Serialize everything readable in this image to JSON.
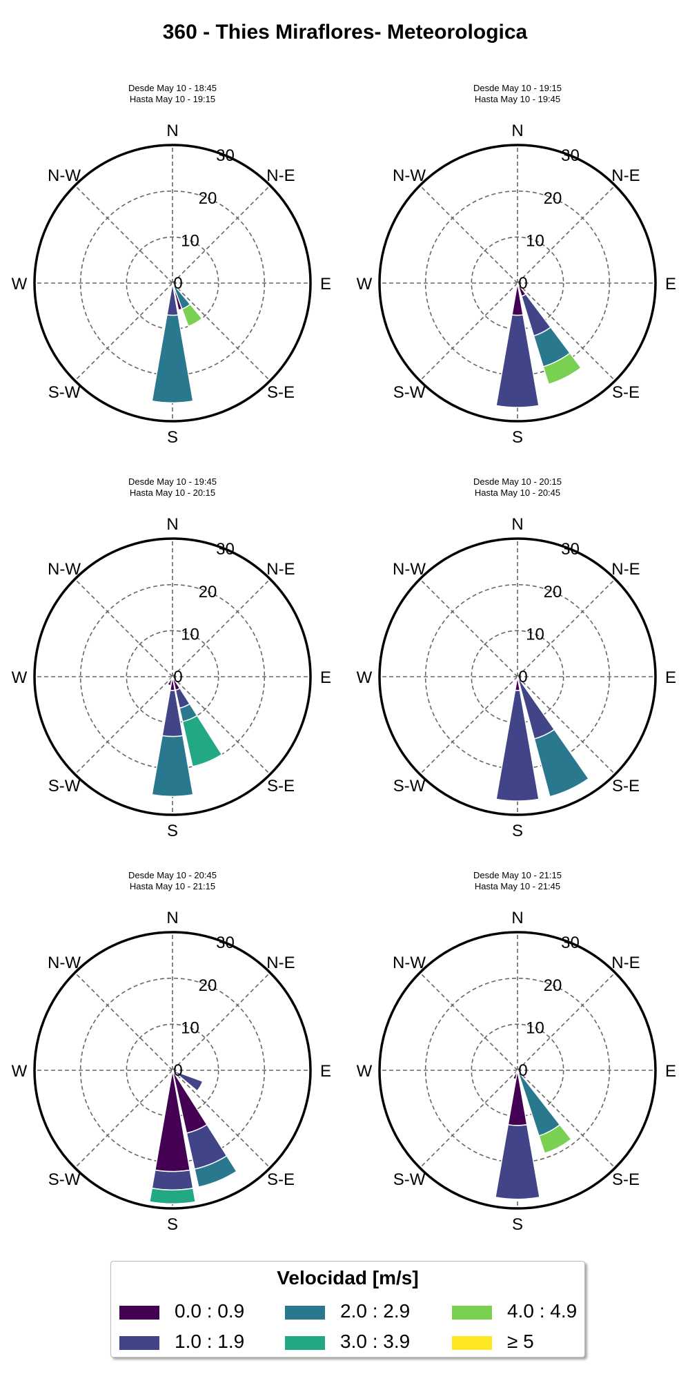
{
  "title": "360 - Thies Miraflores- Meteorologica",
  "directions": [
    "N",
    "N-E",
    "E",
    "S-E",
    "S",
    "S-W",
    "W",
    "N-W"
  ],
  "radial_ticks": [
    "0",
    "10",
    "20",
    "30"
  ],
  "colors": [
    "#440154",
    "#414487",
    "#2a788e",
    "#22a884",
    "#7ad151",
    "#fde725"
  ],
  "legend": {
    "title": "Velocidad [m/s]",
    "items": [
      {
        "label": "0.0 : 0.9",
        "color": "#440154"
      },
      {
        "label": "1.0 : 1.9",
        "color": "#414487"
      },
      {
        "label": "2.0 : 2.9",
        "color": "#2a788e"
      },
      {
        "label": "3.0 : 3.9",
        "color": "#22a884"
      },
      {
        "label": "4.0 : 4.9",
        "color": "#7ad151"
      },
      {
        "label": "≥  5",
        "color": "#fde725"
      }
    ]
  },
  "chart_data": [
    {
      "type": "windrose",
      "subtitle": [
        "Desde May 10 - 18:45",
        "Hasta May 10 - 19:15"
      ],
      "rlim": [
        0,
        30
      ],
      "bins": [
        "0.0 : 0.9",
        "1.0 : 1.9",
        "2.0 : 2.9",
        "3.0 : 3.9",
        "4.0 : 4.9",
        "≥  5"
      ],
      "directions": [
        {
          "angle": 180,
          "segments": [
            0,
            7,
            19,
            0,
            0,
            0
          ]
        },
        {
          "angle": 157.5,
          "segments": [
            6,
            0,
            0,
            0,
            0,
            0
          ]
        },
        {
          "angle": 150,
          "segments": [
            0,
            0,
            6,
            0,
            4,
            0
          ]
        }
      ]
    },
    {
      "type": "windrose",
      "subtitle": [
        "Desde May 10 - 19:15",
        "Hasta May 10 - 19:45"
      ],
      "rlim": [
        0,
        30
      ],
      "bins": [
        "0.0 : 0.9",
        "1.0 : 1.9",
        "2.0 : 2.9",
        "3.0 : 3.9",
        "4.0 : 4.9",
        "≥  5"
      ],
      "directions": [
        {
          "angle": 180,
          "segments": [
            7,
            20,
            0,
            0,
            0,
            0
          ]
        },
        {
          "angle": 153,
          "segments": [
            3,
            9,
            7,
            0,
            4,
            0
          ]
        }
      ]
    },
    {
      "type": "windrose",
      "subtitle": [
        "Desde May 10 - 19:45",
        "Hasta May 10 - 20:15"
      ],
      "rlim": [
        0,
        30
      ],
      "bins": [
        "0.0 : 0.9",
        "1.0 : 1.9",
        "2.0 : 2.9",
        "3.0 : 3.9",
        "4.0 : 4.9",
        "≥  5"
      ],
      "directions": [
        {
          "angle": 180,
          "segments": [
            3,
            10,
            13,
            0,
            0,
            0
          ]
        },
        {
          "angle": 157.5,
          "segments": [
            3,
            4,
            3,
            10,
            0,
            0
          ]
        },
        {
          "angle": 202.5,
          "segments": [
            2,
            0,
            0,
            0,
            0,
            0
          ]
        }
      ]
    },
    {
      "type": "windrose",
      "subtitle": [
        "Desde May 10 - 20:15",
        "Hasta May 10 - 20:45"
      ],
      "rlim": [
        0,
        30
      ],
      "bins": [
        "0.0 : 0.9",
        "1.0 : 1.9",
        "2.0 : 2.9",
        "3.0 : 3.9",
        "4.0 : 4.9",
        "≥  5"
      ],
      "directions": [
        {
          "angle": 180,
          "segments": [
            3,
            24,
            0,
            0,
            0,
            0
          ]
        },
        {
          "angle": 155,
          "segments": [
            0,
            14,
            13,
            0,
            0,
            0
          ]
        }
      ]
    },
    {
      "type": "windrose",
      "subtitle": [
        "Desde May 10 - 20:45",
        "Hasta May 10 - 21:15"
      ],
      "rlim": [
        0,
        30
      ],
      "bins": [
        "0.0 : 0.9",
        "1.0 : 1.9",
        "2.0 : 2.9",
        "3.0 : 3.9",
        "4.0 : 4.9",
        "≥  5"
      ],
      "directions": [
        {
          "angle": 180,
          "segments": [
            22,
            4,
            0,
            3,
            0,
            0
          ]
        },
        {
          "angle": 157.5,
          "segments": [
            14,
            8,
            4,
            0,
            0,
            0
          ]
        },
        {
          "angle": 120,
          "segments": [
            0,
            7,
            0,
            0,
            0,
            0
          ]
        }
      ]
    },
    {
      "type": "windrose",
      "subtitle": [
        "Desde May 10 - 21:15",
        "Hasta May 10 - 21:45"
      ],
      "rlim": [
        0,
        30
      ],
      "bins": [
        "0.0 : 0.9",
        "1.0 : 1.9",
        "2.0 : 2.9",
        "3.0 : 3.9",
        "4.0 : 4.9",
        "≥  5"
      ],
      "directions": [
        {
          "angle": 180,
          "segments": [
            12,
            16,
            0,
            0,
            0,
            0
          ]
        },
        {
          "angle": 152,
          "segments": [
            0,
            0,
            15,
            0,
            4,
            0
          ]
        },
        {
          "angle": 200,
          "segments": [
            2,
            0,
            0,
            0,
            0,
            0
          ]
        }
      ]
    }
  ]
}
